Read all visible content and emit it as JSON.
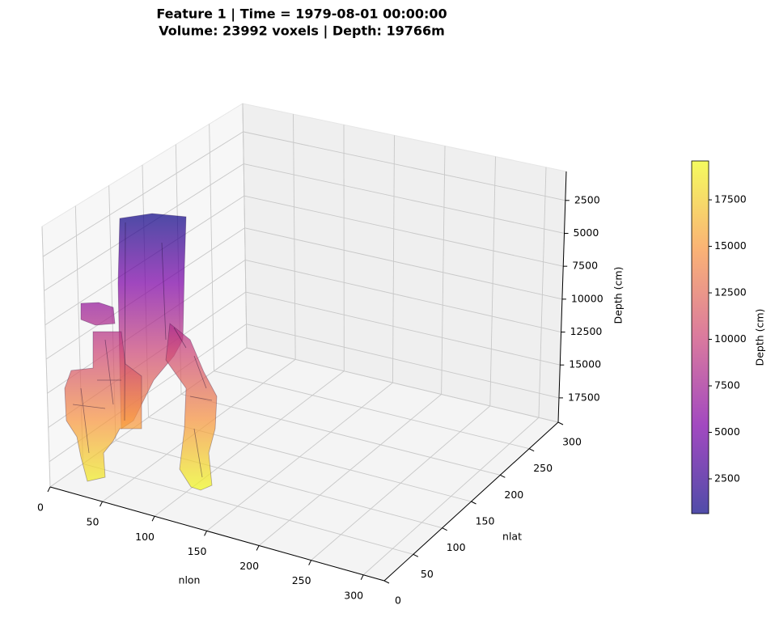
{
  "chart_data": {
    "type": "voxel3d",
    "title": "Feature 1 | Time = 1979-08-01 00:00:00",
    "subtitle": "Volume: 23992 voxels | Depth: 19766m",
    "xlabel": "nlon",
    "ylabel": "nlat",
    "zlabel": "Depth (cm)",
    "xlim": [
      0,
      320
    ],
    "xticks": [
      0,
      50,
      100,
      150,
      200,
      250,
      300
    ],
    "ylim": [
      0,
      300
    ],
    "yticks": [
      0,
      50,
      100,
      150,
      200,
      250,
      300
    ],
    "zlim": [
      300,
      19350
    ],
    "zticks": [
      2500,
      5000,
      7500,
      10000,
      12500,
      15000,
      17500
    ],
    "z_inverted": true,
    "grid": true,
    "colorbar": {
      "label": "Depth (cm)",
      "colormap": "plasma",
      "clim": [
        630,
        19590
      ],
      "ticks": [
        2500,
        5000,
        7500,
        10000,
        12500,
        15000,
        17500
      ]
    }
  }
}
